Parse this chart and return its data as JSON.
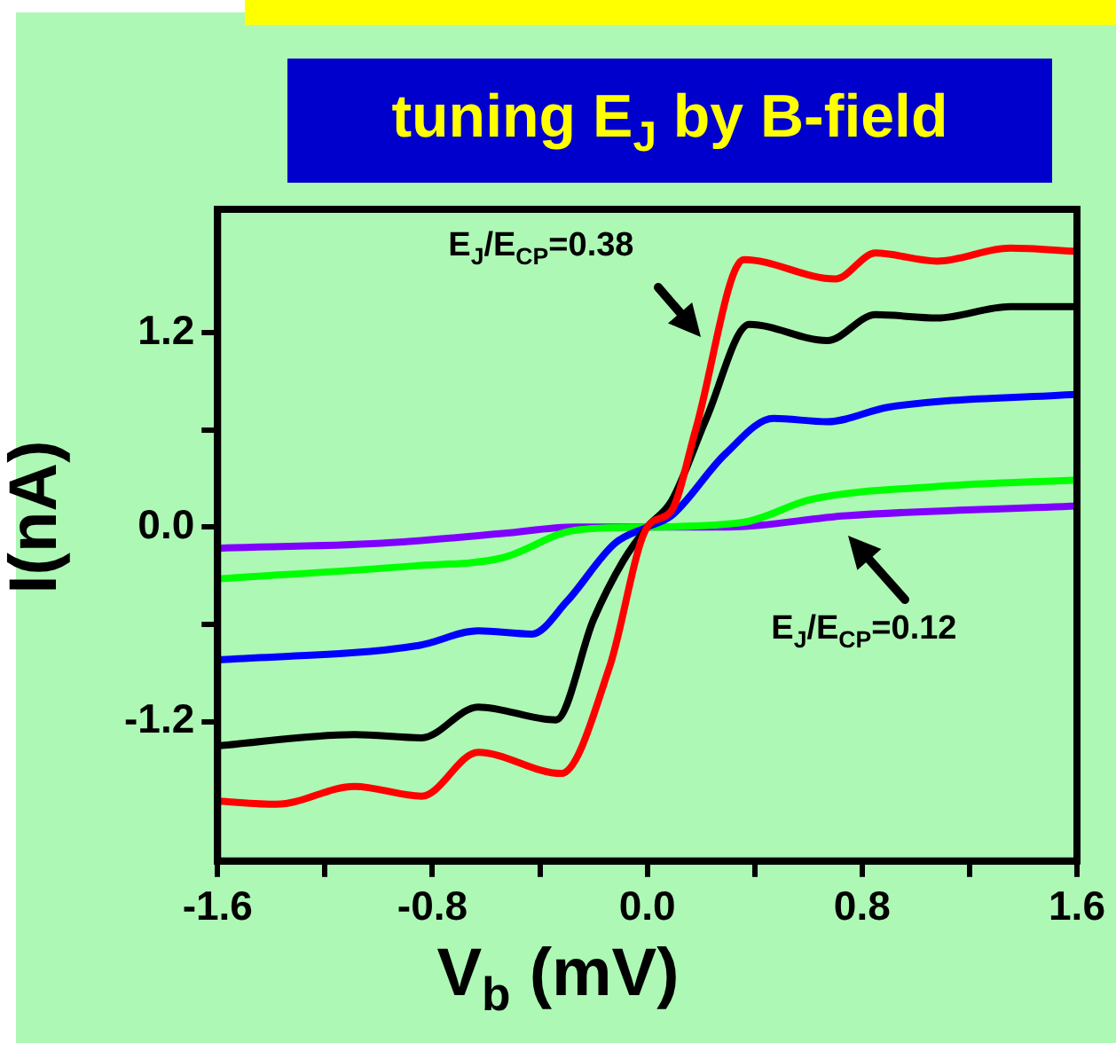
{
  "chart_data": {
    "type": "line",
    "title": "tuning E$_{J}$ by B-field",
    "xlabel": "V$_{b}$ (mV)",
    "ylabel": "I(nA)",
    "xlim": [
      -1.6,
      1.6
    ],
    "ylim": [
      -2.06,
      1.96
    ],
    "xticks": [
      -1.6,
      {
        "value": -1.2,
        "label": null
      },
      -0.8,
      {
        "value": -0.4,
        "label": null
      },
      {
        "value": 0,
        "label": "0.0"
      },
      {
        "value": 0.4,
        "label": null
      },
      0.8,
      {
        "value": 1.2,
        "label": null
      },
      1.6
    ],
    "yticks": [
      -1.2,
      {
        "value": -0.6,
        "label": null
      },
      {
        "value": 0,
        "label": "0.0"
      },
      {
        "value": 0.6,
        "label": null
      },
      1.2
    ],
    "marker": "none",
    "line_style": "solid",
    "series": [
      {
        "color": "#ff0000",
        "x": [
          -1.6,
          -1.38,
          -1.09,
          -0.84,
          -0.63,
          -0.32,
          -0.14,
          0,
          0.09,
          0.18,
          0.36,
          0.7,
          0.85,
          1.08,
          1.35,
          1.6
        ],
        "values": [
          -1.69,
          -1.71,
          -1.6,
          -1.66,
          -1.39,
          -1.52,
          -0.86,
          0,
          0.1,
          0.6,
          1.65,
          1.53,
          1.69,
          1.64,
          1.72,
          1.7
        ]
      },
      {
        "color": "#000000",
        "x": [
          -1.6,
          -1.09,
          -0.84,
          -0.63,
          -0.34,
          -0.2,
          -0.09,
          0,
          0.09,
          0.22,
          0.38,
          0.67,
          0.85,
          1.08,
          1.35,
          1.6
        ],
        "values": [
          -1.35,
          -1.28,
          -1.3,
          -1.11,
          -1.19,
          -0.57,
          -0.21,
          0,
          0.16,
          0.67,
          1.25,
          1.15,
          1.31,
          1.29,
          1.36,
          1.36
        ]
      },
      {
        "color": "#0000ff",
        "x": [
          -1.6,
          -0.85,
          -0.63,
          -0.43,
          -0.3,
          -0.12,
          0,
          0.09,
          0.29,
          0.47,
          0.67,
          0.9,
          1.6
        ],
        "values": [
          -0.82,
          -0.73,
          -0.64,
          -0.66,
          -0.46,
          -0.1,
          0,
          0.07,
          0.45,
          0.67,
          0.65,
          0.74,
          0.82
        ]
      },
      {
        "color": "#00ff00",
        "x": [
          -1.6,
          -0.87,
          -0.54,
          -0.27,
          0,
          0.36,
          0.61,
          1.08,
          1.6
        ],
        "values": [
          -0.32,
          -0.24,
          -0.19,
          -0.02,
          0,
          0.03,
          0.17,
          0.25,
          0.29
        ]
      },
      {
        "color": "#8000ff",
        "x": [
          -1.6,
          -0.99,
          -0.54,
          -0.27,
          0.3,
          0.74,
          1.6
        ],
        "values": [
          -0.13,
          -0.1,
          -0.04,
          0,
          0,
          0.07,
          0.13
        ]
      }
    ],
    "annotations": [
      "E$_{J}$/E$_{CP}$=0.38",
      "E$_{J}$/E$_{CP}$=0.12"
    ]
  }
}
